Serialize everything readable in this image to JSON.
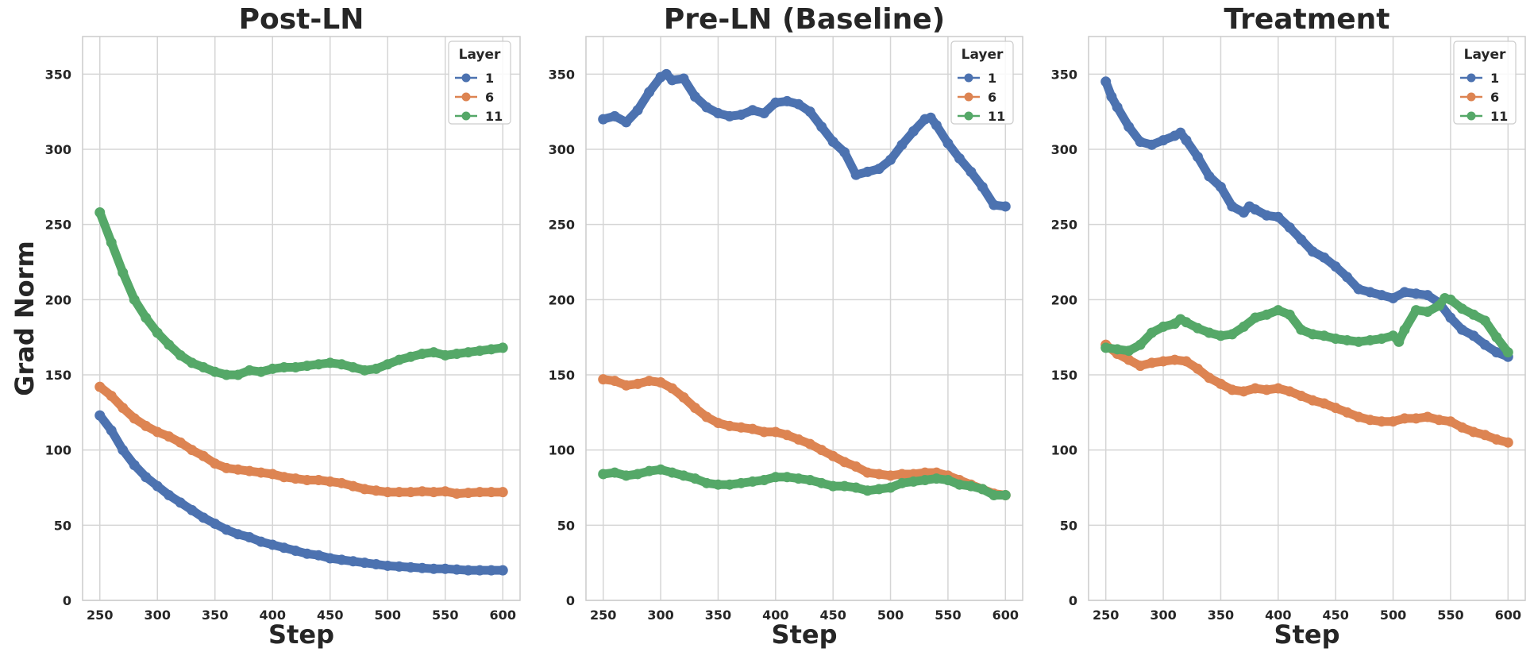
{
  "colors": {
    "layer_1": "#4c72b0",
    "layer_6": "#dd8452",
    "layer_11": "#55a868",
    "grid": "#d5d5d5",
    "frame": "#cccccc"
  },
  "chart_data": [
    {
      "type": "line",
      "title": "Post-LN",
      "xlabel": "Step",
      "ylabel": "Grad Norm",
      "xlim": [
        235,
        615
      ],
      "ylim": [
        0,
        375
      ],
      "xticks": [
        250,
        300,
        350,
        400,
        450,
        500,
        550,
        600
      ],
      "yticks": [
        0,
        50,
        100,
        150,
        200,
        250,
        300,
        350
      ],
      "grid": true,
      "legend": {
        "title": "Layer",
        "location": "top-right"
      },
      "series": [
        {
          "name": "1",
          "color_key": "layer_1",
          "x": [
            250,
            260,
            270,
            280,
            290,
            300,
            310,
            320,
            330,
            340,
            350,
            360,
            370,
            380,
            390,
            400,
            410,
            420,
            430,
            440,
            450,
            460,
            470,
            480,
            490,
            500,
            510,
            520,
            530,
            540,
            550,
            560,
            570,
            580,
            590,
            600
          ],
          "y": [
            123,
            113,
            100,
            90,
            82,
            76,
            70,
            65,
            60,
            55,
            51,
            47,
            44,
            42,
            39,
            37,
            35,
            33,
            31,
            30,
            28,
            27,
            26,
            25,
            24,
            23,
            22.5,
            22,
            21.5,
            21,
            21,
            20.5,
            20,
            20,
            20,
            20
          ]
        },
        {
          "name": "6",
          "color_key": "layer_6",
          "x": [
            250,
            260,
            270,
            280,
            290,
            300,
            310,
            320,
            330,
            340,
            350,
            360,
            370,
            380,
            390,
            400,
            410,
            420,
            430,
            440,
            450,
            460,
            470,
            480,
            490,
            500,
            510,
            520,
            530,
            540,
            550,
            560,
            570,
            580,
            590,
            600
          ],
          "y": [
            142,
            136,
            128,
            121,
            116,
            112,
            109,
            105,
            100,
            96,
            91,
            88,
            87,
            86,
            85,
            84,
            82,
            81,
            80,
            80,
            79,
            78,
            76,
            74,
            73,
            72,
            72,
            72,
            72.5,
            72,
            72.5,
            71,
            71.5,
            72,
            72,
            72
          ]
        },
        {
          "name": "11",
          "color_key": "layer_11",
          "x": [
            250,
            260,
            270,
            280,
            290,
            300,
            310,
            320,
            330,
            340,
            350,
            360,
            370,
            380,
            390,
            400,
            410,
            420,
            430,
            440,
            450,
            460,
            470,
            480,
            490,
            500,
            510,
            520,
            530,
            540,
            550,
            560,
            570,
            580,
            590,
            600
          ],
          "y": [
            258,
            238,
            218,
            200,
            188,
            178,
            170,
            163,
            158,
            155,
            152,
            150,
            150,
            153,
            152,
            154,
            155,
            155,
            156,
            157,
            158,
            157,
            155,
            153,
            154,
            157,
            160,
            162,
            164,
            165,
            163,
            164,
            165,
            166,
            167,
            168
          ]
        }
      ]
    },
    {
      "type": "line",
      "title": "Pre-LN (Baseline)",
      "xlabel": "Step",
      "ylabel": "",
      "xlim": [
        235,
        615
      ],
      "ylim": [
        0,
        375
      ],
      "xticks": [
        250,
        300,
        350,
        400,
        450,
        500,
        550,
        600
      ],
      "yticks": [
        0,
        50,
        100,
        150,
        200,
        250,
        300,
        350
      ],
      "grid": true,
      "legend": {
        "title": "Layer",
        "location": "top-right"
      },
      "series": [
        {
          "name": "1",
          "color_key": "layer_1",
          "x": [
            250,
            260,
            270,
            280,
            290,
            300,
            305,
            310,
            320,
            330,
            340,
            350,
            360,
            370,
            380,
            390,
            400,
            410,
            420,
            430,
            440,
            450,
            460,
            470,
            480,
            490,
            500,
            510,
            520,
            530,
            535,
            540,
            550,
            560,
            570,
            580,
            590,
            600
          ],
          "y": [
            320,
            322,
            318,
            326,
            338,
            348,
            350,
            346,
            347,
            335,
            328,
            324,
            322,
            323,
            326,
            324,
            331,
            332,
            330,
            325,
            315,
            305,
            298,
            283,
            285,
            287,
            293,
            303,
            312,
            320,
            321,
            316,
            304,
            294,
            285,
            275,
            263,
            262
          ]
        },
        {
          "name": "6",
          "color_key": "layer_6",
          "x": [
            250,
            260,
            270,
            280,
            290,
            300,
            310,
            320,
            330,
            340,
            350,
            360,
            370,
            380,
            390,
            400,
            410,
            420,
            430,
            440,
            450,
            460,
            470,
            480,
            490,
            500,
            510,
            520,
            530,
            540,
            550,
            560,
            570,
            580,
            590,
            600
          ],
          "y": [
            147,
            146,
            143,
            144,
            146,
            145,
            141,
            135,
            128,
            122,
            118,
            116,
            115,
            114,
            112,
            112,
            110,
            107,
            104,
            100,
            96,
            92,
            89,
            85,
            84,
            83,
            84,
            84,
            85,
            85,
            83,
            80,
            77,
            74,
            71,
            70
          ]
        },
        {
          "name": "11",
          "color_key": "layer_11",
          "x": [
            250,
            260,
            270,
            280,
            290,
            300,
            310,
            320,
            330,
            340,
            350,
            360,
            370,
            380,
            390,
            400,
            410,
            420,
            430,
            440,
            450,
            460,
            470,
            480,
            490,
            500,
            510,
            520,
            530,
            540,
            550,
            560,
            570,
            580,
            590,
            600
          ],
          "y": [
            84,
            85,
            83,
            84,
            86,
            87,
            85,
            83,
            81,
            78,
            77,
            77,
            78,
            79,
            80,
            82,
            82,
            81,
            80,
            78,
            76,
            76,
            75,
            73,
            74,
            75,
            78,
            79,
            80,
            81,
            80,
            77,
            76,
            74,
            70,
            70
          ]
        }
      ]
    },
    {
      "type": "line",
      "title": "Treatment",
      "xlabel": "Step",
      "ylabel": "",
      "xlim": [
        235,
        615
      ],
      "ylim": [
        0,
        375
      ],
      "xticks": [
        250,
        300,
        350,
        400,
        450,
        500,
        550,
        600
      ],
      "yticks": [
        0,
        50,
        100,
        150,
        200,
        250,
        300,
        350
      ],
      "grid": true,
      "legend": {
        "title": "Layer",
        "location": "top-right"
      },
      "series": [
        {
          "name": "1",
          "color_key": "layer_1",
          "x": [
            250,
            255,
            260,
            270,
            280,
            290,
            300,
            310,
            315,
            320,
            330,
            340,
            350,
            360,
            370,
            375,
            380,
            390,
            400,
            410,
            420,
            430,
            440,
            450,
            460,
            470,
            480,
            490,
            500,
            510,
            520,
            530,
            540,
            550,
            560,
            570,
            580,
            590,
            600
          ],
          "y": [
            345,
            335,
            328,
            315,
            305,
            303,
            306,
            309,
            311,
            306,
            295,
            282,
            275,
            262,
            258,
            262,
            260,
            256,
            255,
            248,
            240,
            232,
            228,
            222,
            215,
            207,
            205,
            203,
            201,
            205,
            204,
            203,
            198,
            188,
            180,
            176,
            170,
            165,
            162
          ]
        },
        {
          "name": "6",
          "color_key": "layer_6",
          "x": [
            250,
            260,
            270,
            280,
            290,
            300,
            310,
            320,
            330,
            340,
            350,
            360,
            370,
            380,
            390,
            400,
            410,
            420,
            430,
            440,
            450,
            460,
            470,
            480,
            490,
            500,
            510,
            520,
            530,
            540,
            550,
            560,
            570,
            580,
            590,
            600
          ],
          "y": [
            170,
            164,
            160,
            156,
            158,
            159,
            160,
            159,
            154,
            148,
            144,
            140,
            139,
            141,
            140,
            141,
            139,
            136,
            133,
            131,
            128,
            125,
            122,
            120,
            119,
            119,
            121,
            121,
            122,
            120,
            119,
            115,
            112,
            110,
            107,
            105
          ]
        },
        {
          "name": "11",
          "color_key": "layer_11",
          "x": [
            250,
            260,
            270,
            280,
            290,
            300,
            310,
            315,
            320,
            330,
            340,
            350,
            360,
            370,
            380,
            390,
            400,
            410,
            420,
            430,
            440,
            450,
            460,
            470,
            480,
            490,
            500,
            505,
            510,
            520,
            530,
            540,
            545,
            550,
            560,
            570,
            580,
            590,
            600
          ],
          "y": [
            168,
            167,
            166,
            170,
            178,
            182,
            184,
            187,
            185,
            181,
            178,
            176,
            177,
            182,
            188,
            190,
            193,
            190,
            180,
            177,
            176,
            174,
            173,
            172,
            173,
            174,
            176,
            172,
            180,
            193,
            192,
            196,
            201,
            200,
            194,
            190,
            186,
            175,
            165
          ]
        }
      ]
    }
  ]
}
